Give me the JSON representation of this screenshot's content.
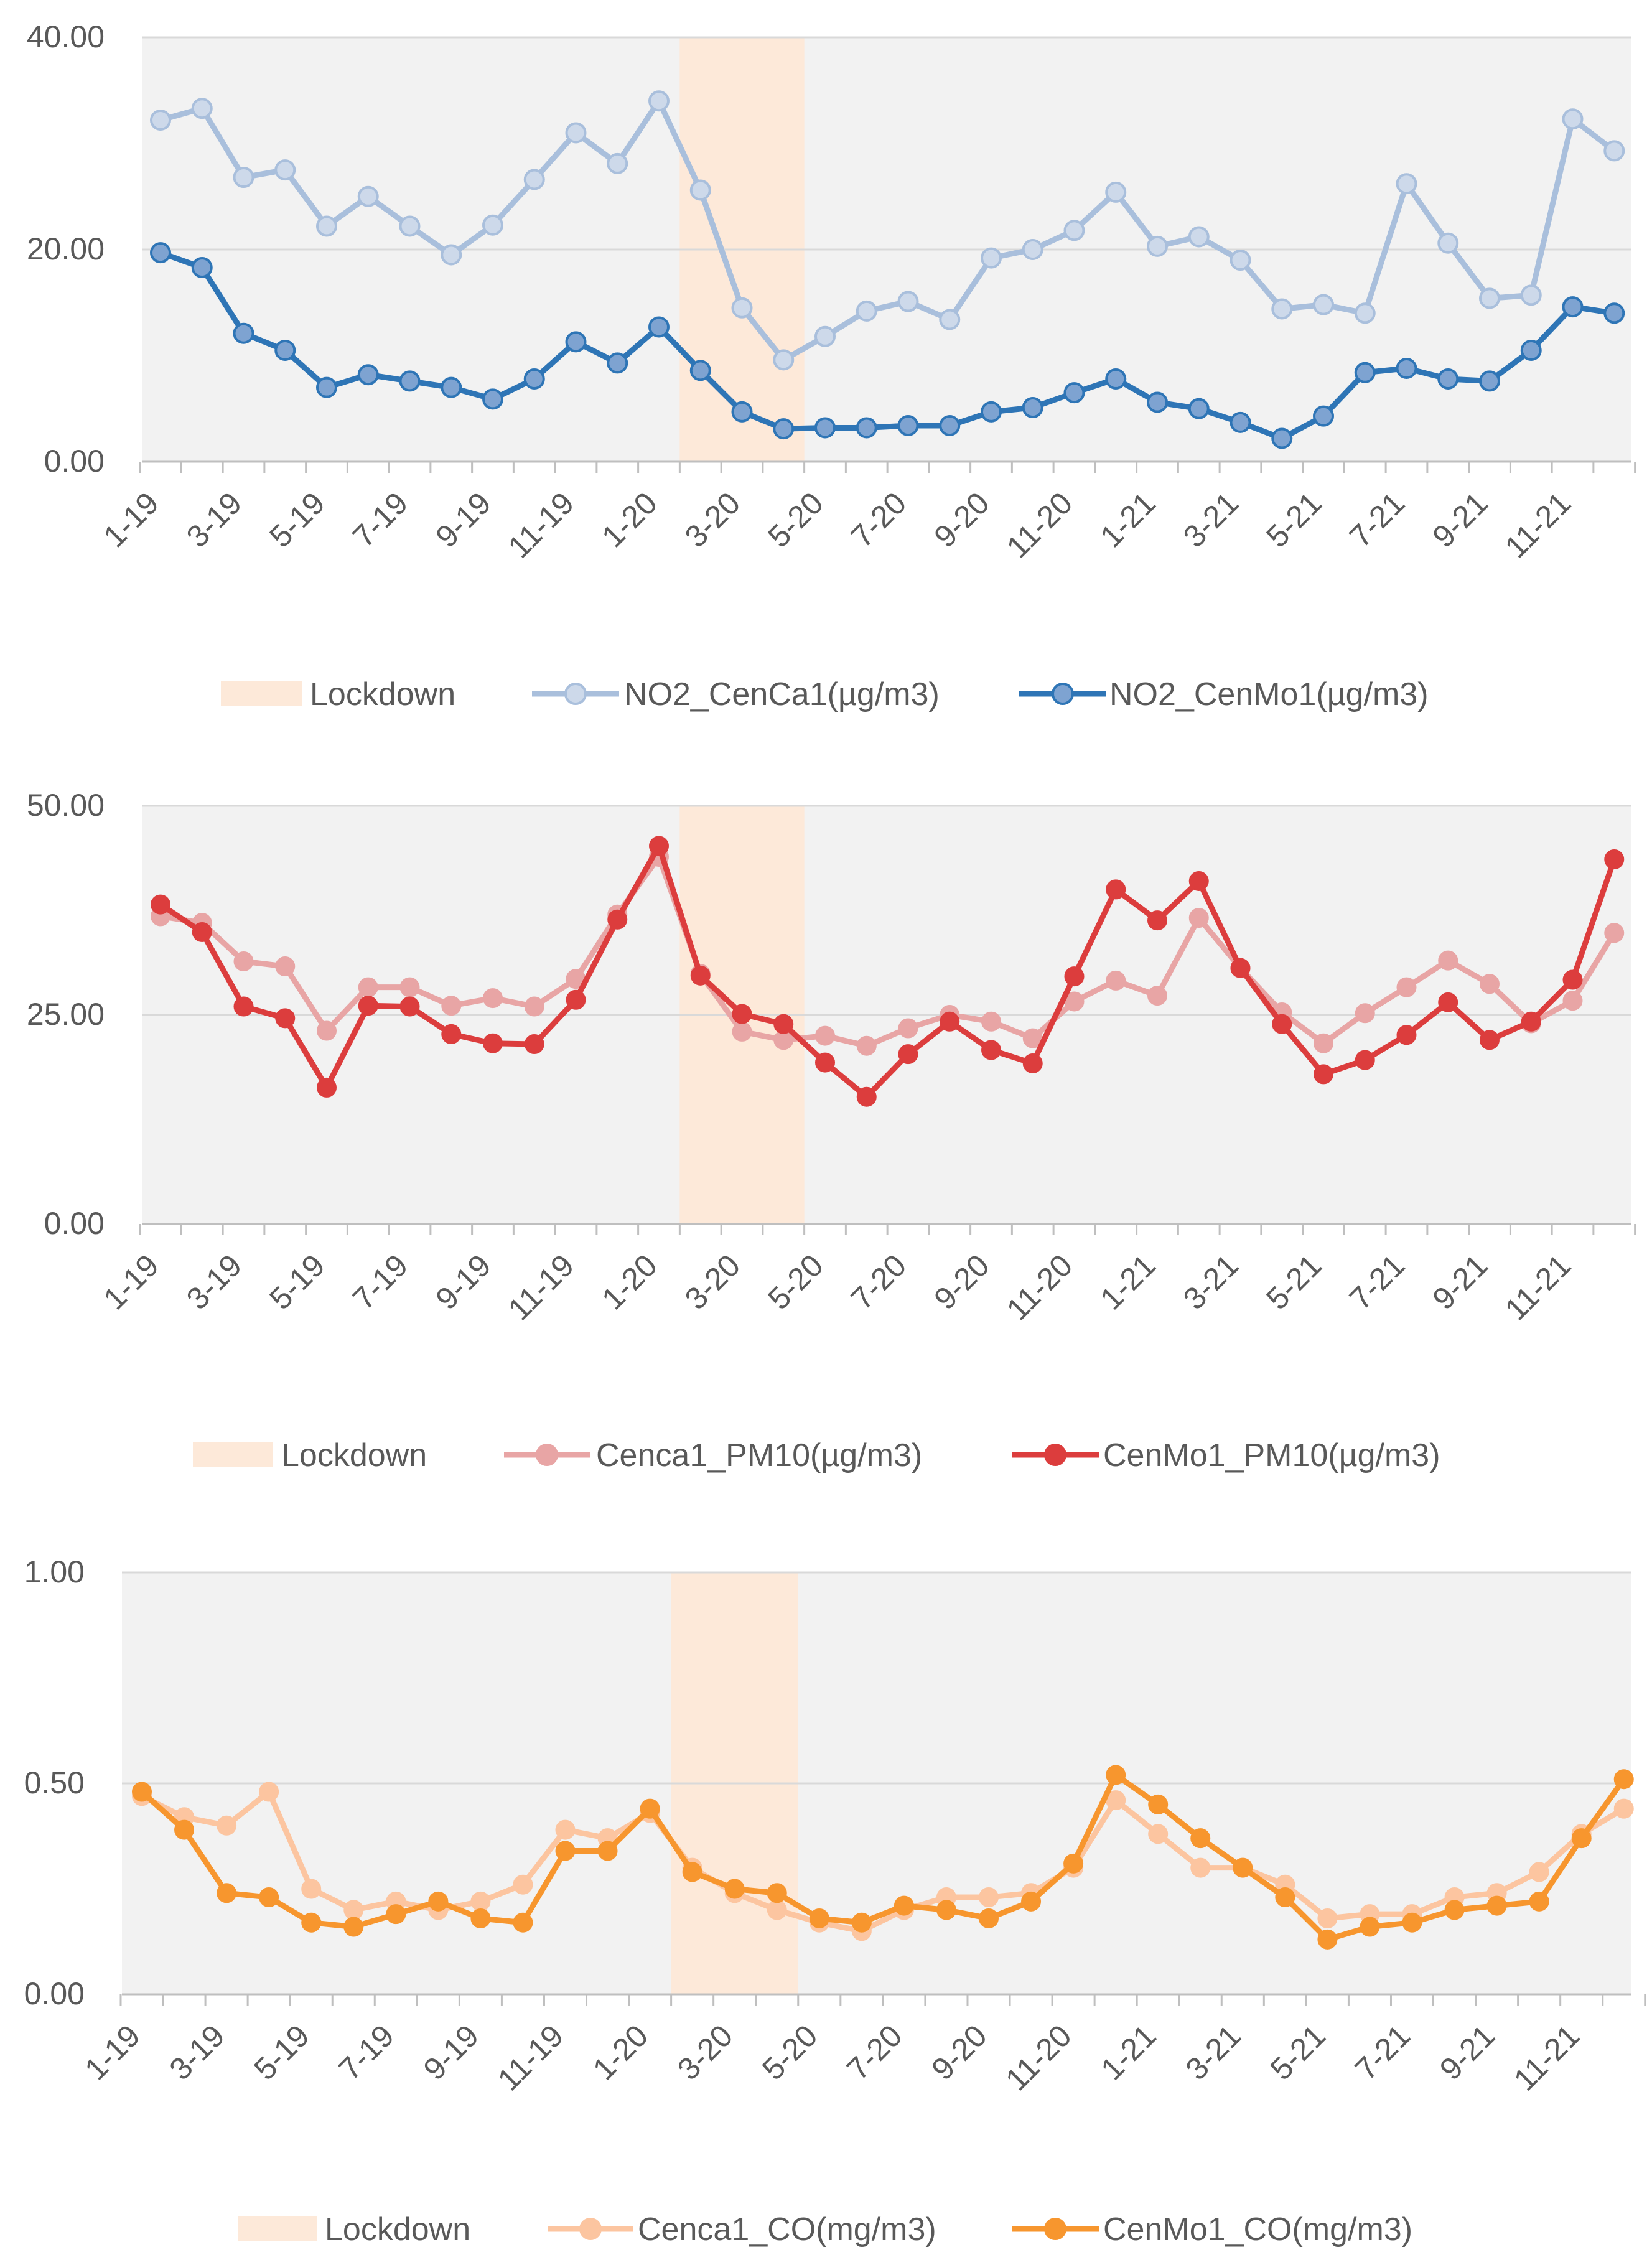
{
  "chart_data": [
    {
      "type": "line",
      "title": "",
      "xlabel": "",
      "ylabel": "",
      "ylim": [
        0,
        40
      ],
      "yticks": [
        "0.00",
        "20.00",
        "40.00"
      ],
      "categories": [
        "1-19",
        "2-19",
        "3-19",
        "4-19",
        "5-19",
        "6-19",
        "7-19",
        "8-19",
        "9-19",
        "10-19",
        "11-19",
        "12-19",
        "1-20",
        "2-20",
        "3-20",
        "4-20",
        "5-20",
        "6-20",
        "7-20",
        "8-20",
        "9-20",
        "10-20",
        "11-20",
        "12-20",
        "1-21",
        "2-21",
        "3-21",
        "4-21",
        "5-21",
        "6-21",
        "7-21",
        "8-21",
        "9-21",
        "10-21",
        "11-21",
        "12-21"
      ],
      "tick_labels": [
        "1-19",
        "3-19",
        "5-19",
        "7-19",
        "9-19",
        "11-19",
        "1-20",
        "3-20",
        "5-20",
        "7-20",
        "9-20",
        "11-20",
        "1-21",
        "3-21",
        "5-21",
        "7-21",
        "9-21",
        "11-21"
      ],
      "lockdown": {
        "label": "Lockdown",
        "from": "2-20",
        "to": "4-20",
        "color": "#fde9d9"
      },
      "legend_position": "bottom",
      "series": [
        {
          "name": "NO2_CenCa1(µg/m3)",
          "color": "#a9bfdc",
          "marker_fill": "#cdd9ea",
          "values": [
            32.2,
            33.3,
            26.8,
            27.5,
            22.2,
            25.0,
            22.2,
            19.5,
            22.3,
            26.6,
            31.0,
            28.1,
            34.0,
            25.6,
            14.5,
            9.6,
            11.8,
            14.2,
            15.1,
            13.4,
            19.2,
            20.0,
            21.8,
            25.4,
            20.3,
            21.2,
            19.0,
            14.4,
            14.8,
            14.0,
            26.2,
            20.6,
            15.4,
            15.7,
            32.3,
            29.3
          ]
        },
        {
          "name": "NO2_CenMo1(µg/m3)",
          "color": "#2e75b6",
          "marker_fill": "#7ea3d1",
          "values": [
            19.7,
            18.3,
            12.1,
            10.5,
            7.0,
            8.2,
            7.6,
            7.0,
            5.9,
            7.8,
            11.3,
            9.3,
            12.7,
            8.6,
            4.7,
            3.1,
            3.2,
            3.2,
            3.4,
            3.4,
            4.7,
            5.1,
            6.5,
            7.8,
            5.6,
            5.0,
            3.7,
            2.2,
            4.3,
            8.4,
            8.8,
            7.8,
            7.6,
            10.5,
            14.6,
            14.0
          ]
        }
      ]
    },
    {
      "type": "line",
      "title": "",
      "xlabel": "",
      "ylabel": "",
      "ylim": [
        0,
        50
      ],
      "yticks": [
        "0.00",
        "25.00",
        "50.00"
      ],
      "categories": [
        "1-19",
        "2-19",
        "3-19",
        "4-19",
        "5-19",
        "6-19",
        "7-19",
        "8-19",
        "9-19",
        "10-19",
        "11-19",
        "12-19",
        "1-20",
        "2-20",
        "3-20",
        "4-20",
        "5-20",
        "6-20",
        "7-20",
        "8-20",
        "9-20",
        "10-20",
        "11-20",
        "12-20",
        "1-21",
        "2-21",
        "3-21",
        "4-21",
        "5-21",
        "6-21",
        "7-21",
        "8-21",
        "9-21",
        "10-21",
        "11-21",
        "12-21"
      ],
      "tick_labels": [
        "1-19",
        "3-19",
        "5-19",
        "7-19",
        "9-19",
        "11-19",
        "1-20",
        "3-20",
        "5-20",
        "7-20",
        "9-20",
        "11-20",
        "1-21",
        "3-21",
        "5-21",
        "7-21",
        "9-21",
        "11-21"
      ],
      "lockdown": {
        "label": "Lockdown",
        "from": "2-20",
        "to": "4-20",
        "color": "#fde9d9"
      },
      "legend_position": "bottom",
      "series": [
        {
          "name": "Cenca1_PM10(µg/m3)",
          "color": "#e8a5a5",
          "marker_fill": "#e8a5a5",
          "values": [
            36.8,
            36.0,
            31.4,
            30.8,
            23.1,
            28.3,
            28.3,
            26.1,
            27.0,
            26.0,
            29.3,
            37.0,
            43.9,
            29.9,
            23.0,
            22.0,
            22.5,
            21.3,
            23.4,
            25.0,
            24.2,
            22.2,
            26.6,
            29.1,
            27.3,
            36.6,
            30.6,
            25.3,
            21.6,
            25.2,
            28.3,
            31.5,
            28.7,
            24.0,
            26.7,
            34.8
          ]
        },
        {
          "name": "CenMo1_PM10(µg/m3)",
          "color": "#dc3d3d",
          "marker_fill": "#dc3d3d",
          "values": [
            38.2,
            34.9,
            26.0,
            24.6,
            16.3,
            26.1,
            26.0,
            22.7,
            21.6,
            21.5,
            26.8,
            36.4,
            45.2,
            29.7,
            25.1,
            23.9,
            19.3,
            15.2,
            20.3,
            24.2,
            20.8,
            19.2,
            29.6,
            40.0,
            36.3,
            41.0,
            30.6,
            23.9,
            17.9,
            19.6,
            22.6,
            26.5,
            22.0,
            24.2,
            29.2,
            43.6
          ]
        }
      ]
    },
    {
      "type": "line",
      "title": "",
      "xlabel": "",
      "ylabel": "",
      "ylim": [
        0,
        1
      ],
      "yticks": [
        "0.00",
        "0.50",
        "1.00"
      ],
      "categories": [
        "1-19",
        "2-19",
        "3-19",
        "4-19",
        "5-19",
        "6-19",
        "7-19",
        "8-19",
        "9-19",
        "10-19",
        "11-19",
        "12-19",
        "1-20",
        "2-20",
        "3-20",
        "4-20",
        "5-20",
        "6-20",
        "7-20",
        "8-20",
        "9-20",
        "10-20",
        "11-20",
        "12-20",
        "1-21",
        "2-21",
        "3-21",
        "4-21",
        "5-21",
        "6-21",
        "7-21",
        "8-21",
        "9-21",
        "10-21",
        "11-21",
        "12-21"
      ],
      "tick_labels": [
        "1-19",
        "3-19",
        "5-19",
        "7-19",
        "9-19",
        "11-19",
        "1-20",
        "3-20",
        "5-20",
        "7-20",
        "9-20",
        "11-20",
        "1-21",
        "3-21",
        "5-21",
        "7-21",
        "9-21",
        "11-21"
      ],
      "lockdown": {
        "label": "Lockdown",
        "from": "2-20",
        "to": "4-20",
        "color": "#fde9d9"
      },
      "legend_position": "bottom",
      "series": [
        {
          "name": "Cenca1_CO(mg/m3)",
          "color": "#fcc5a0",
          "marker_fill": "#fcc5a0",
          "values": [
            0.47,
            0.42,
            0.4,
            0.48,
            0.25,
            0.2,
            0.22,
            0.2,
            0.22,
            0.26,
            0.39,
            0.37,
            0.43,
            0.3,
            0.24,
            0.2,
            0.17,
            0.15,
            0.2,
            0.23,
            0.23,
            0.24,
            0.3,
            0.46,
            0.38,
            0.3,
            0.3,
            0.26,
            0.18,
            0.19,
            0.19,
            0.23,
            0.24,
            0.29,
            0.38,
            0.44
          ]
        },
        {
          "name": "CenMo1_CO(mg/m3)",
          "color": "#f7962e",
          "marker_fill": "#f7962e",
          "values": [
            0.48,
            0.39,
            0.24,
            0.23,
            0.17,
            0.16,
            0.19,
            0.22,
            0.18,
            0.17,
            0.34,
            0.34,
            0.44,
            0.29,
            0.25,
            0.24,
            0.18,
            0.17,
            0.21,
            0.2,
            0.18,
            0.22,
            0.31,
            0.52,
            0.45,
            0.37,
            0.3,
            0.23,
            0.13,
            0.16,
            0.17,
            0.2,
            0.21,
            0.22,
            0.37,
            0.51
          ]
        }
      ]
    }
  ]
}
